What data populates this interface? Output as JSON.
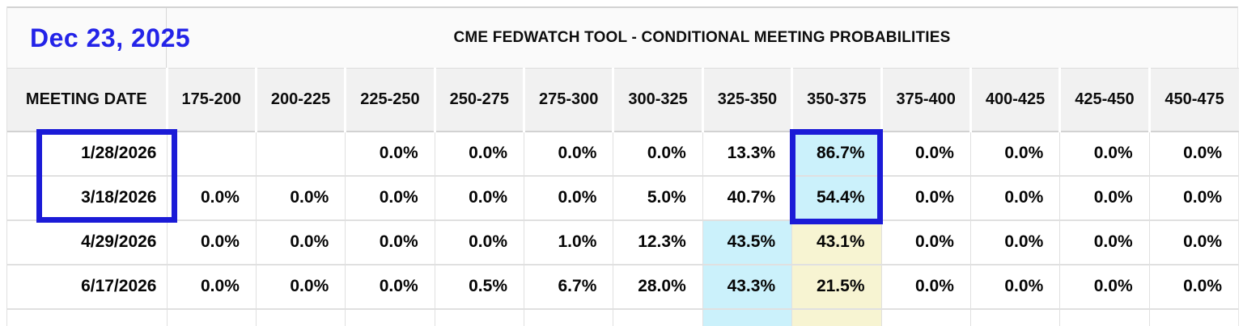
{
  "header": {
    "date_label": "Dec 23, 2025",
    "title": "CME FEDWATCH TOOL - CONDITIONAL MEETING PROBABILITIES"
  },
  "table": {
    "columns": [
      "MEETING DATE",
      "175-200",
      "200-225",
      "225-250",
      "250-275",
      "275-300",
      "300-325",
      "325-350",
      "350-375",
      "375-400",
      "400-425",
      "425-450",
      "450-475"
    ],
    "rows": [
      {
        "meeting_date": "1/28/2026",
        "values": [
          "",
          "",
          "0.0%",
          "0.0%",
          "0.0%",
          "0.0%",
          "13.3%",
          "86.7%",
          "0.0%",
          "0.0%",
          "0.0%",
          "0.0%"
        ],
        "highlights": {
          "7": "cyan"
        }
      },
      {
        "meeting_date": "3/18/2026",
        "values": [
          "0.0%",
          "0.0%",
          "0.0%",
          "0.0%",
          "0.0%",
          "5.0%",
          "40.7%",
          "54.4%",
          "0.0%",
          "0.0%",
          "0.0%",
          "0.0%"
        ],
        "highlights": {
          "7": "cyan"
        }
      },
      {
        "meeting_date": "4/29/2026",
        "values": [
          "0.0%",
          "0.0%",
          "0.0%",
          "0.0%",
          "1.0%",
          "12.3%",
          "43.5%",
          "43.1%",
          "0.0%",
          "0.0%",
          "0.0%",
          "0.0%"
        ],
        "highlights": {
          "6": "cyan",
          "7": "yellow"
        }
      },
      {
        "meeting_date": "6/17/2026",
        "values": [
          "0.0%",
          "0.0%",
          "0.0%",
          "0.5%",
          "6.7%",
          "28.0%",
          "43.3%",
          "21.5%",
          "0.0%",
          "0.0%",
          "0.0%",
          "0.0%"
        ],
        "highlights": {
          "6": "cyan",
          "7": "yellow"
        }
      }
    ],
    "partial_row": {
      "meeting_date": "",
      "values": [
        "",
        "",
        "",
        "",
        "",
        "",
        "",
        "",
        "",
        "",
        "",
        ""
      ],
      "highlights": {
        "6": "cyan",
        "7": "yellow"
      }
    },
    "selection": {
      "dates_box_rows": [
        "1/28/2026",
        "3/18/2026"
      ],
      "probability_box_column": "350-375"
    }
  },
  "colors": {
    "selection_blue": "#1b1bd7",
    "date_text_blue": "#2323e8",
    "cyan_highlight": "#cbf1fb",
    "yellow_highlight": "#f7f4d2",
    "header_bg": "#f1f1f1",
    "title_bg": "#fafafa",
    "grid_line": "#e0e0e0"
  }
}
